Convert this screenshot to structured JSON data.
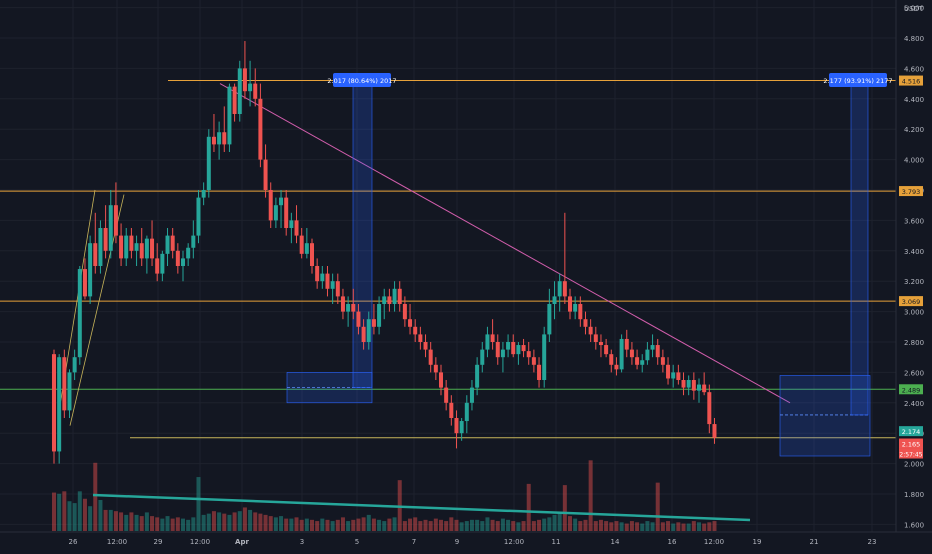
{
  "chart_data": {
    "type": "candlestick",
    "currency": "USDT",
    "x_tick_labels": [
      "26",
      "12:00",
      "29",
      "12:00",
      "Apr",
      "3",
      "5",
      "7",
      "9",
      "12:00",
      "11",
      "14",
      "16",
      "12:00",
      "19",
      "21",
      "23"
    ],
    "y_ticks": [
      1.6,
      1.8,
      2.0,
      2.2,
      2.4,
      2.6,
      2.8,
      3.0,
      3.2,
      3.4,
      3.6,
      3.8,
      4.0,
      4.2,
      4.4,
      4.6,
      4.8,
      5.0
    ],
    "y_tick_labels": [
      "1.600",
      "1.800",
      "2.000",
      "2.200",
      "2.400",
      "2.600",
      "2.800",
      "3.000",
      "3.200",
      "3.400",
      "3.600",
      "3.800",
      "4.000",
      "4.200",
      "4.400",
      "4.600",
      "4.800",
      "5.000"
    ],
    "ylim": [
      1.55,
      5.05
    ],
    "candles": [
      [
        2.72,
        2.75,
        2.0,
        2.08
      ],
      [
        2.08,
        2.72,
        2.0,
        2.7
      ],
      [
        2.7,
        2.75,
        2.3,
        2.35
      ],
      [
        2.35,
        2.62,
        2.3,
        2.6
      ],
      [
        2.6,
        2.75,
        2.55,
        2.7
      ],
      [
        2.7,
        3.3,
        2.65,
        3.28
      ],
      [
        3.28,
        3.35,
        3.08,
        3.1
      ],
      [
        3.1,
        3.5,
        3.05,
        3.45
      ],
      [
        3.45,
        3.65,
        3.25,
        3.3
      ],
      [
        3.3,
        3.6,
        3.25,
        3.55
      ],
      [
        3.55,
        3.7,
        3.35,
        3.4
      ],
      [
        3.4,
        3.8,
        3.35,
        3.7
      ],
      [
        3.7,
        3.85,
        3.45,
        3.5
      ],
      [
        3.5,
        3.58,
        3.3,
        3.35
      ],
      [
        3.35,
        3.55,
        3.3,
        3.5
      ],
      [
        3.5,
        3.55,
        3.35,
        3.4
      ],
      [
        3.4,
        3.5,
        3.3,
        3.45
      ],
      [
        3.45,
        3.55,
        3.3,
        3.35
      ],
      [
        3.35,
        3.5,
        3.25,
        3.48
      ],
      [
        3.48,
        3.6,
        3.3,
        3.35
      ],
      [
        3.35,
        3.45,
        3.2,
        3.25
      ],
      [
        3.25,
        3.4,
        3.2,
        3.38
      ],
      [
        3.38,
        3.55,
        3.3,
        3.5
      ],
      [
        3.5,
        3.55,
        3.35,
        3.4
      ],
      [
        3.4,
        3.45,
        3.25,
        3.3
      ],
      [
        3.3,
        3.4,
        3.2,
        3.35
      ],
      [
        3.35,
        3.45,
        3.3,
        3.42
      ],
      [
        3.42,
        3.6,
        3.35,
        3.5
      ],
      [
        3.5,
        3.8,
        3.45,
        3.75
      ],
      [
        3.75,
        3.85,
        3.7,
        3.8
      ],
      [
        3.8,
        4.2,
        3.75,
        4.15
      ],
      [
        4.15,
        4.3,
        4.05,
        4.1
      ],
      [
        4.1,
        4.25,
        4.0,
        4.18
      ],
      [
        4.18,
        4.35,
        4.05,
        4.1
      ],
      [
        4.1,
        4.5,
        4.05,
        4.48
      ],
      [
        4.48,
        4.5,
        4.25,
        4.3
      ],
      [
        4.3,
        4.65,
        4.25,
        4.6
      ],
      [
        4.6,
        4.78,
        4.4,
        4.45
      ],
      [
        4.45,
        4.65,
        4.35,
        4.5
      ],
      [
        4.5,
        4.6,
        4.35,
        4.4
      ],
      [
        4.4,
        4.5,
        3.95,
        4.0
      ],
      [
        4.0,
        4.1,
        3.75,
        3.8
      ],
      [
        3.8,
        3.85,
        3.55,
        3.6
      ],
      [
        3.6,
        3.75,
        3.55,
        3.7
      ],
      [
        3.7,
        3.8,
        3.55,
        3.75
      ],
      [
        3.75,
        3.8,
        3.5,
        3.55
      ],
      [
        3.55,
        3.65,
        3.45,
        3.6
      ],
      [
        3.6,
        3.7,
        3.45,
        3.5
      ],
      [
        3.5,
        3.55,
        3.35,
        3.38
      ],
      [
        3.38,
        3.55,
        3.35,
        3.45
      ],
      [
        3.45,
        3.48,
        3.25,
        3.3
      ],
      [
        3.3,
        3.35,
        3.15,
        3.2
      ],
      [
        3.2,
        3.3,
        3.15,
        3.25
      ],
      [
        3.25,
        3.3,
        3.1,
        3.15
      ],
      [
        3.15,
        3.25,
        3.05,
        3.2
      ],
      [
        3.2,
        3.25,
        3.05,
        3.1
      ],
      [
        3.1,
        3.15,
        2.95,
        3.0
      ],
      [
        3.0,
        3.1,
        2.9,
        3.05
      ],
      [
        3.05,
        3.15,
        2.95,
        3.0
      ],
      [
        3.0,
        3.05,
        2.85,
        2.9
      ],
      [
        2.9,
        2.95,
        2.75,
        2.8
      ],
      [
        2.8,
        3.0,
        2.75,
        2.95
      ],
      [
        2.95,
        3.05,
        2.85,
        2.9
      ],
      [
        2.9,
        3.1,
        2.85,
        3.05
      ],
      [
        3.05,
        3.15,
        2.95,
        3.1
      ],
      [
        3.1,
        3.15,
        3.0,
        3.05
      ],
      [
        3.05,
        3.2,
        3.0,
        3.15
      ],
      [
        3.15,
        3.2,
        3.0,
        3.05
      ],
      [
        3.05,
        3.1,
        2.9,
        2.95
      ],
      [
        2.95,
        3.05,
        2.85,
        2.9
      ],
      [
        2.9,
        2.95,
        2.8,
        2.85
      ],
      [
        2.85,
        2.9,
        2.75,
        2.8
      ],
      [
        2.8,
        2.85,
        2.7,
        2.75
      ],
      [
        2.75,
        2.8,
        2.6,
        2.65
      ],
      [
        2.65,
        2.7,
        2.55,
        2.6
      ],
      [
        2.6,
        2.65,
        2.45,
        2.5
      ],
      [
        2.5,
        2.55,
        2.35,
        2.4
      ],
      [
        2.4,
        2.45,
        2.25,
        2.3
      ],
      [
        2.3,
        2.35,
        2.1,
        2.2
      ],
      [
        2.2,
        2.3,
        2.15,
        2.28
      ],
      [
        2.28,
        2.45,
        2.2,
        2.4
      ],
      [
        2.4,
        2.55,
        2.35,
        2.5
      ],
      [
        2.5,
        2.7,
        2.45,
        2.65
      ],
      [
        2.65,
        2.8,
        2.6,
        2.75
      ],
      [
        2.75,
        2.9,
        2.7,
        2.85
      ],
      [
        2.85,
        2.95,
        2.75,
        2.8
      ],
      [
        2.8,
        2.85,
        2.65,
        2.7
      ],
      [
        2.7,
        2.8,
        2.6,
        2.75
      ],
      [
        2.75,
        2.85,
        2.7,
        2.8
      ],
      [
        2.8,
        2.85,
        2.7,
        2.72
      ],
      [
        2.72,
        2.8,
        2.65,
        2.78
      ],
      [
        2.78,
        2.82,
        2.7,
        2.74
      ],
      [
        2.74,
        2.8,
        2.65,
        2.7
      ],
      [
        2.7,
        2.75,
        2.6,
        2.65
      ],
      [
        2.65,
        2.7,
        2.5,
        2.55
      ],
      [
        2.55,
        2.9,
        2.5,
        2.85
      ],
      [
        2.85,
        3.15,
        2.8,
        3.05
      ],
      [
        3.05,
        3.2,
        2.95,
        3.1
      ],
      [
        3.1,
        3.25,
        3.0,
        3.2
      ],
      [
        3.2,
        3.65,
        3.05,
        3.1
      ],
      [
        3.1,
        3.15,
        2.95,
        3.0
      ],
      [
        3.0,
        3.1,
        2.95,
        3.05
      ],
      [
        3.05,
        3.1,
        2.9,
        2.95
      ],
      [
        2.95,
        3.0,
        2.85,
        2.9
      ],
      [
        2.9,
        2.95,
        2.8,
        2.85
      ],
      [
        2.85,
        2.9,
        2.75,
        2.8
      ],
      [
        2.8,
        2.85,
        2.7,
        2.78
      ],
      [
        2.78,
        2.82,
        2.7,
        2.72
      ],
      [
        2.72,
        2.75,
        2.6,
        2.65
      ],
      [
        2.65,
        2.7,
        2.58,
        2.62
      ],
      [
        2.62,
        2.85,
        2.6,
        2.82
      ],
      [
        2.82,
        2.88,
        2.7,
        2.75
      ],
      [
        2.75,
        2.8,
        2.65,
        2.7
      ],
      [
        2.7,
        2.75,
        2.62,
        2.65
      ],
      [
        2.65,
        2.72,
        2.6,
        2.68
      ],
      [
        2.68,
        2.8,
        2.65,
        2.75
      ],
      [
        2.75,
        2.85,
        2.7,
        2.78
      ],
      [
        2.78,
        2.82,
        2.65,
        2.7
      ],
      [
        2.7,
        2.75,
        2.6,
        2.65
      ],
      [
        2.65,
        2.7,
        2.52,
        2.56
      ],
      [
        2.56,
        2.65,
        2.5,
        2.6
      ],
      [
        2.6,
        2.65,
        2.52,
        2.55
      ],
      [
        2.55,
        2.6,
        2.45,
        2.5
      ],
      [
        2.5,
        2.58,
        2.45,
        2.55
      ],
      [
        2.55,
        2.6,
        2.42,
        2.48
      ],
      [
        2.48,
        2.56,
        2.4,
        2.52
      ],
      [
        2.52,
        2.6,
        2.45,
        2.47
      ],
      [
        2.47,
        2.52,
        2.2,
        2.26
      ],
      [
        2.26,
        2.3,
        2.13,
        2.17
      ]
    ],
    "volumes": [
      62,
      60,
      64,
      48,
      45,
      64,
      52,
      40,
      38,
      50,
      34,
      34,
      32,
      30,
      26,
      30,
      26,
      24,
      30,
      24,
      22,
      20,
      24,
      20,
      22,
      20,
      18,
      22,
      24,
      26,
      28,
      32,
      30,
      28,
      26,
      30,
      32,
      38,
      34,
      30,
      28,
      26,
      24,
      22,
      24,
      20,
      20,
      22,
      18,
      20,
      18,
      16,
      20,
      18,
      16,
      18,
      22,
      16,
      18,
      20,
      22,
      26,
      20,
      18,
      16,
      20,
      22,
      18,
      16,
      20,
      22,
      16,
      18,
      16,
      20,
      18,
      16,
      22,
      18,
      14,
      16,
      18,
      18,
      16,
      22,
      18,
      16,
      20,
      18,
      16,
      14,
      16,
      18,
      16,
      18,
      20,
      22,
      26,
      30,
      74,
      24,
      20,
      16,
      18,
      14,
      16,
      18,
      16,
      14,
      16,
      14,
      12,
      16,
      14,
      12,
      16,
      14,
      12,
      14,
      16,
      12,
      14,
      12,
      12,
      16,
      14,
      12,
      14,
      16
    ],
    "volume_spikes": {
      "8": 70,
      "28": 47,
      "67": 42,
      "92": 36,
      "104": 74,
      "117": 38
    },
    "horizontal_levels": [
      {
        "value": 4.52,
        "label": "4.516",
        "color": "#e6a13a"
      },
      {
        "value": 3.793,
        "label": "3.793",
        "color": "#e6a13a"
      },
      {
        "value": 3.069,
        "label": "3.069",
        "color": "#e6a13a"
      },
      {
        "value": 2.489,
        "label": "2.489",
        "color": "#4caf50"
      },
      {
        "value": 2.17,
        "label": "2.165",
        "color": "#c8b55a"
      }
    ],
    "price_labels": [
      {
        "value": 2.174,
        "label": "2.174",
        "color": "#26a69a"
      },
      {
        "value": 2.165,
        "label": "2.165",
        "color": "#ef5350"
      }
    ],
    "countdown": "2:57:45",
    "measure_annotations": [
      {
        "text": "2.017 (80.64%) 2017",
        "color": "#2962ff"
      },
      {
        "text": "2.177 (93.91%) 2177",
        "color": "#2962ff"
      }
    ],
    "trendline_color": "#d05dab",
    "volume_trend_color": "#26a69a",
    "grid": true
  }
}
